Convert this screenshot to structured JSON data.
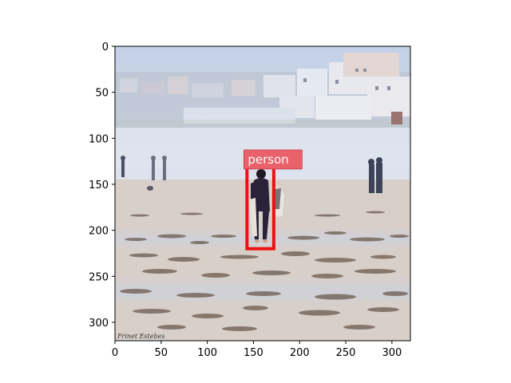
{
  "axes": {
    "x_ticks": [
      "0",
      "50",
      "100",
      "150",
      "200",
      "250",
      "300"
    ],
    "y_ticks": [
      "0",
      "50",
      "100",
      "150",
      "200",
      "250",
      "300"
    ],
    "x_tick_values": [
      0,
      50,
      100,
      150,
      200,
      250,
      300
    ],
    "y_tick_values": [
      0,
      50,
      100,
      150,
      200,
      250,
      300
    ],
    "xlim": [
      0,
      320
    ],
    "ylim": [
      320,
      0
    ]
  },
  "detection": {
    "label": "person",
    "box": {
      "x1": 143,
      "y1": 130,
      "x2": 172,
      "y2": 220
    },
    "box_color": "#ee1111",
    "label_bg": "#e8616b"
  },
  "image": {
    "watermark": "Frinet Estebes",
    "description_colors": {
      "sky": "#c9d7ea",
      "haze": "#d8e0ec",
      "sand": "#d9cfc8"
    }
  }
}
